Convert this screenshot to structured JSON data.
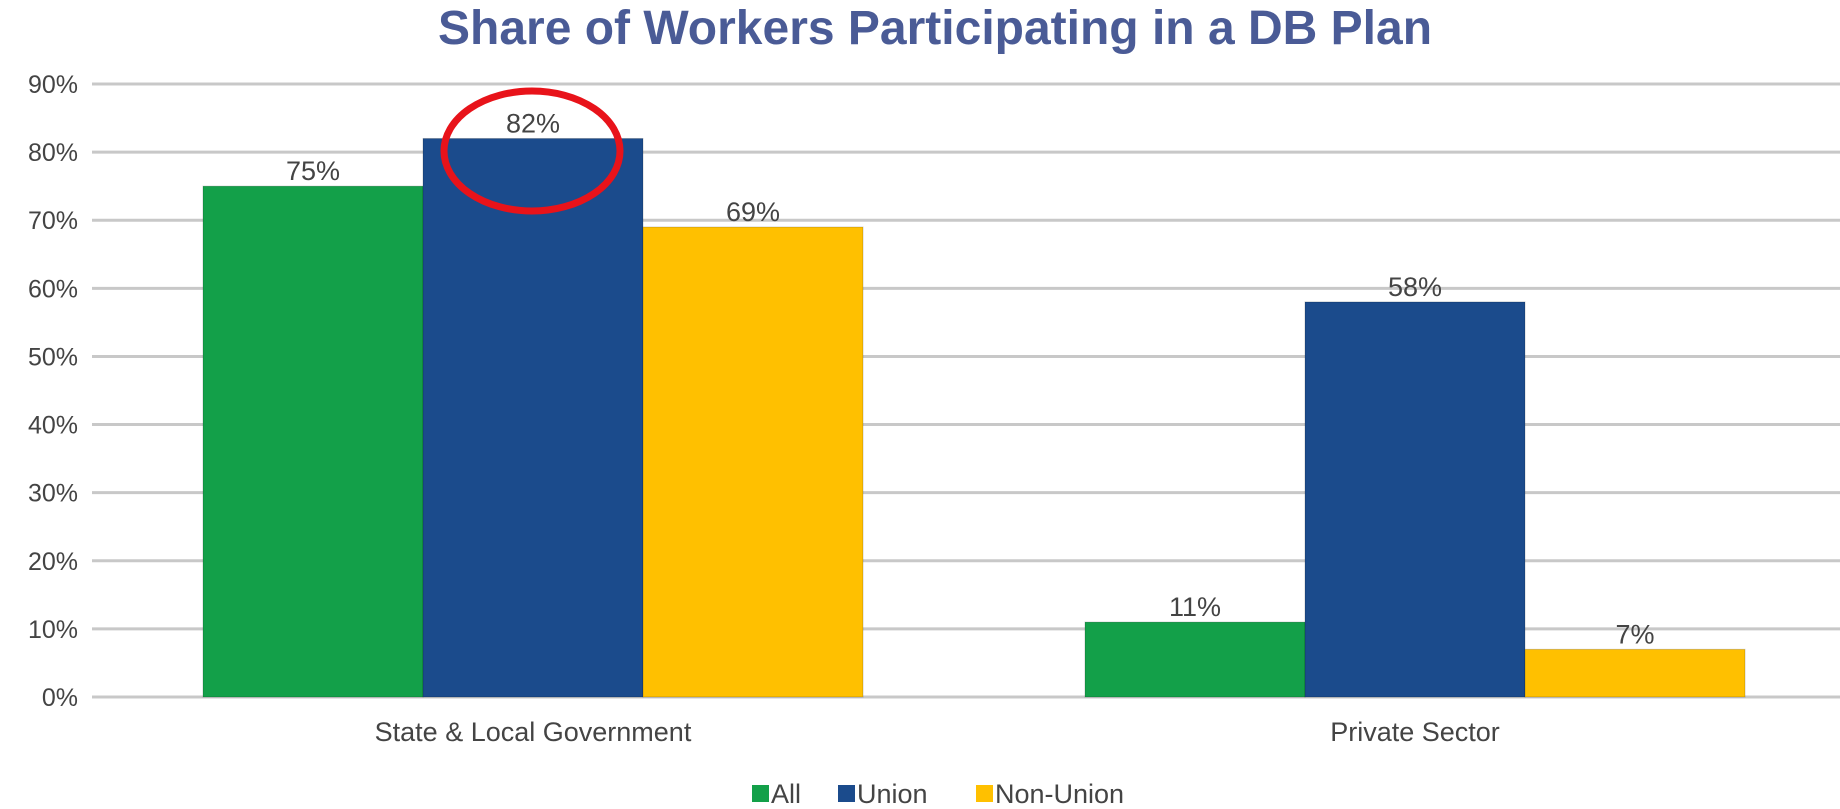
{
  "chart_data": {
    "type": "bar",
    "title": "Share of Workers Participating in a DB Plan",
    "xlabel": "",
    "ylabel": "",
    "categories": [
      "State & Local Government",
      "Private Sector"
    ],
    "series": [
      {
        "name": "All",
        "values": [
          75,
          11
        ],
        "labels": [
          "75%",
          "11%"
        ],
        "color": "#13A049"
      },
      {
        "name": "Union",
        "values": [
          82,
          58
        ],
        "labels": [
          "82%",
          "58%"
        ],
        "color": "#1B4B8C"
      },
      {
        "name": "Non-Union",
        "values": [
          69,
          7
        ],
        "labels": [
          "69%",
          "7%"
        ],
        "color": "#FFC000"
      }
    ],
    "ylim": [
      0,
      90
    ],
    "yticks": [
      {
        "value": 0,
        "label": "0%"
      },
      {
        "value": 10,
        "label": "10%"
      },
      {
        "value": 20,
        "label": "20%"
      },
      {
        "value": 30,
        "label": "30%"
      },
      {
        "value": 40,
        "label": "40%"
      },
      {
        "value": 50,
        "label": "50%"
      },
      {
        "value": 60,
        "label": "60%"
      },
      {
        "value": 70,
        "label": "70%"
      },
      {
        "value": 80,
        "label": "80%"
      },
      {
        "value": 90,
        "label": "90%"
      }
    ],
    "grid": true,
    "legend_position": "bottom",
    "annotation": {
      "type": "circle",
      "target": "State & Local Government / Union",
      "color": "#E8131A"
    },
    "colors": {
      "title": "#4A5B96",
      "gridline": "#C8C8C8",
      "text": "#444444"
    }
  }
}
